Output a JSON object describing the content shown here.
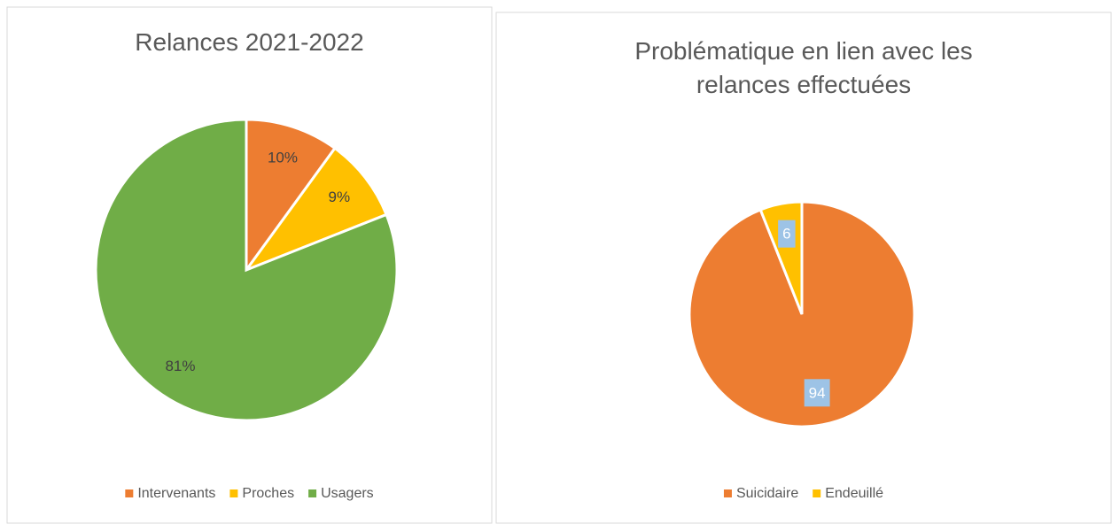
{
  "chart_data": [
    {
      "type": "pie",
      "title": "Relances 2021-2022",
      "categories": [
        "Intervenants",
        "Proches",
        "Usagers"
      ],
      "values": [
        10,
        9,
        81
      ],
      "value_labels": [
        "10%",
        "9%",
        "81%"
      ],
      "colors": [
        "#ed7d31",
        "#ffc000",
        "#70ad47"
      ],
      "legend": "bottom"
    },
    {
      "type": "pie",
      "title": "Problématique en lien avec les relances effectuées",
      "categories": [
        "Suicidaire",
        "Endeuillé"
      ],
      "values": [
        94,
        6
      ],
      "colors": [
        "#ed7d31",
        "#ffc000"
      ],
      "legend": "bottom"
    }
  ]
}
